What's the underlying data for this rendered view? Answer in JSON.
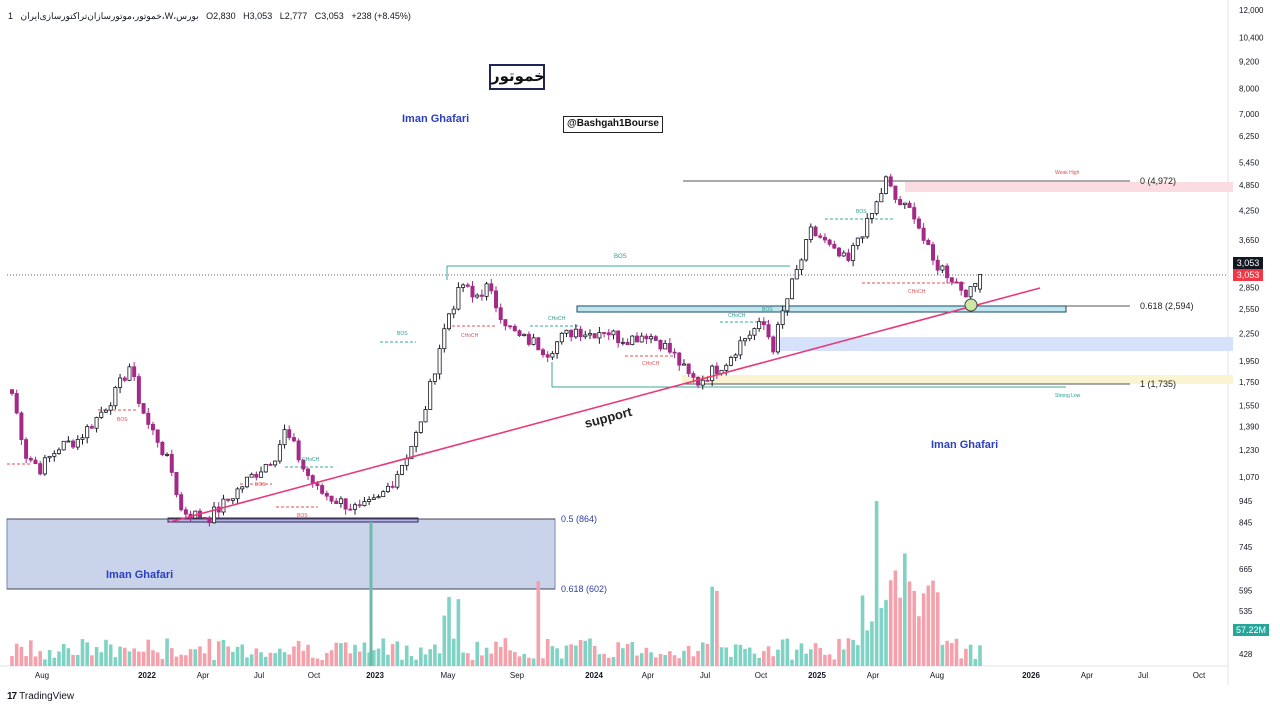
{
  "header": {
    "interval": "1",
    "symbol": "خموتور،موتورسازان‌تراکتورسازی‌ایران،W،بورس",
    "open": "O2,830",
    "high": "H3,053",
    "low": "L2,777",
    "close": "C3,053",
    "change": "+238 (+8.45%)"
  },
  "annotations": {
    "symbol_box": "خموتور",
    "handle": "@Bashgah1Bourse",
    "watermark_1": "Iman Ghafari",
    "watermark_2": "Iman Ghafari",
    "watermark_3": "Iman Ghafari",
    "support_label": "support",
    "bos_1": "BOS",
    "bos_2": "BOS",
    "bos_3": "BOS",
    "bos_4": "BOS",
    "bos_5": "BOS",
    "bos_6": "BOS",
    "bos_7": "BOS",
    "choch_1": "CHoCH",
    "choch_2": "CHoCH",
    "choch_3": "CHoCH",
    "choch_4": "CHoCH",
    "choch_5": "CHoCH",
    "weak_high": "Weak High",
    "strong_low": "Strong Low"
  },
  "fib_labels": {
    "top": "0 (4,972)",
    "f618": "0.618 (2,594)",
    "f1": "1 (1,735)",
    "f05": "0.5 (864)",
    "f0618_low": "0.618 (602)"
  },
  "price_badges": {
    "last_black": "3,053",
    "last_red": "3,053",
    "volume": "57.22M"
  },
  "brand": {
    "logo": "17",
    "name": "TradingView"
  },
  "colors": {
    "bull": "#161a25",
    "bear": "#a32a86",
    "vol_up": "#7fd3c4",
    "vol_down": "#f4a1ab",
    "support": "#e83a7a",
    "watermark": "#2b3fbf"
  },
  "chart_data": {
    "type": "candlestick",
    "ylabel": "",
    "xlabel": "",
    "y_scale": "log",
    "y_ticks": [
      "12,000",
      "10,400",
      "9,200",
      "8,000",
      "7,000",
      "6,250",
      "5,450",
      "4,850",
      "4,250",
      "3,650",
      "2,850",
      "2,550",
      "2,250",
      "1,950",
      "1,750",
      "1,550",
      "1,390",
      "1,230",
      "1,070",
      "945",
      "845",
      "745",
      "665",
      "595",
      "535",
      "428"
    ],
    "x_ticks": [
      "Aug",
      "2022",
      "Apr",
      "Jul",
      "Oct",
      "2023",
      "May",
      "Sep",
      "2024",
      "Apr",
      "Jul",
      "Oct",
      "2025",
      "Apr",
      "Aug",
      "2026",
      "Apr",
      "Jul",
      "Oct"
    ],
    "last_price": 3053,
    "fib_levels": [
      {
        "ratio": "0",
        "price": 4972
      },
      {
        "ratio": "0.618",
        "price": 2594
      },
      {
        "ratio": "1",
        "price": 1735
      },
      {
        "ratio": "0.5",
        "price": 864
      },
      {
        "ratio": "0.618",
        "price": 602
      }
    ],
    "path_points": [
      [
        0,
        1650
      ],
      [
        3,
        1200
      ],
      [
        6,
        1120
      ],
      [
        10,
        1250
      ],
      [
        14,
        1300
      ],
      [
        18,
        1450
      ],
      [
        22,
        1650
      ],
      [
        25,
        1900
      ],
      [
        27,
        1600
      ],
      [
        29,
        1400
      ],
      [
        31,
        1300
      ],
      [
        34,
        1100
      ],
      [
        36,
        900
      ],
      [
        39,
        880
      ],
      [
        42,
        870
      ],
      [
        46,
        950
      ],
      [
        50,
        1050
      ],
      [
        53,
        1120
      ],
      [
        56,
        1200
      ],
      [
        58,
        1350
      ],
      [
        60,
        1250
      ],
      [
        62,
        1120
      ],
      [
        65,
        1000
      ],
      [
        68,
        960
      ],
      [
        71,
        930
      ],
      [
        74,
        900
      ],
      [
        78,
        950
      ],
      [
        81,
        1050
      ],
      [
        84,
        1200
      ],
      [
        87,
        1400
      ],
      [
        89,
        1700
      ],
      [
        91,
        2100
      ],
      [
        93,
        2500
      ],
      [
        96,
        2900
      ],
      [
        98,
        2700
      ],
      [
        101,
        2850
      ],
      [
        104,
        2500
      ],
      [
        106,
        2300
      ],
      [
        108,
        2200
      ],
      [
        111,
        2150
      ],
      [
        114,
        2050
      ],
      [
        117,
        2200
      ],
      [
        120,
        2300
      ],
      [
        123,
        2250
      ],
      [
        126,
        2300
      ],
      [
        129,
        2200
      ],
      [
        132,
        2200
      ],
      [
        135,
        2250
      ],
      [
        138,
        2150
      ],
      [
        141,
        2000
      ],
      [
        144,
        1800
      ],
      [
        146,
        1750
      ],
      [
        149,
        1850
      ],
      [
        152,
        1950
      ],
      [
        155,
        2150
      ],
      [
        158,
        2300
      ],
      [
        160,
        2350
      ],
      [
        162,
        2100
      ],
      [
        164,
        2500
      ],
      [
        166,
        2900
      ],
      [
        168,
        3300
      ],
      [
        170,
        3800
      ],
      [
        172,
        3700
      ],
      [
        175,
        3400
      ],
      [
        178,
        3250
      ],
      [
        180,
        3700
      ],
      [
        182,
        3950
      ],
      [
        184,
        4400
      ],
      [
        186,
        4972
      ],
      [
        188,
        4500
      ],
      [
        190,
        4300
      ],
      [
        192,
        4200
      ],
      [
        194,
        3650
      ],
      [
        196,
        3250
      ],
      [
        198,
        3150
      ],
      [
        200,
        3000
      ],
      [
        202,
        2850
      ],
      [
        204,
        2777
      ],
      [
        206,
        3053
      ]
    ]
  }
}
